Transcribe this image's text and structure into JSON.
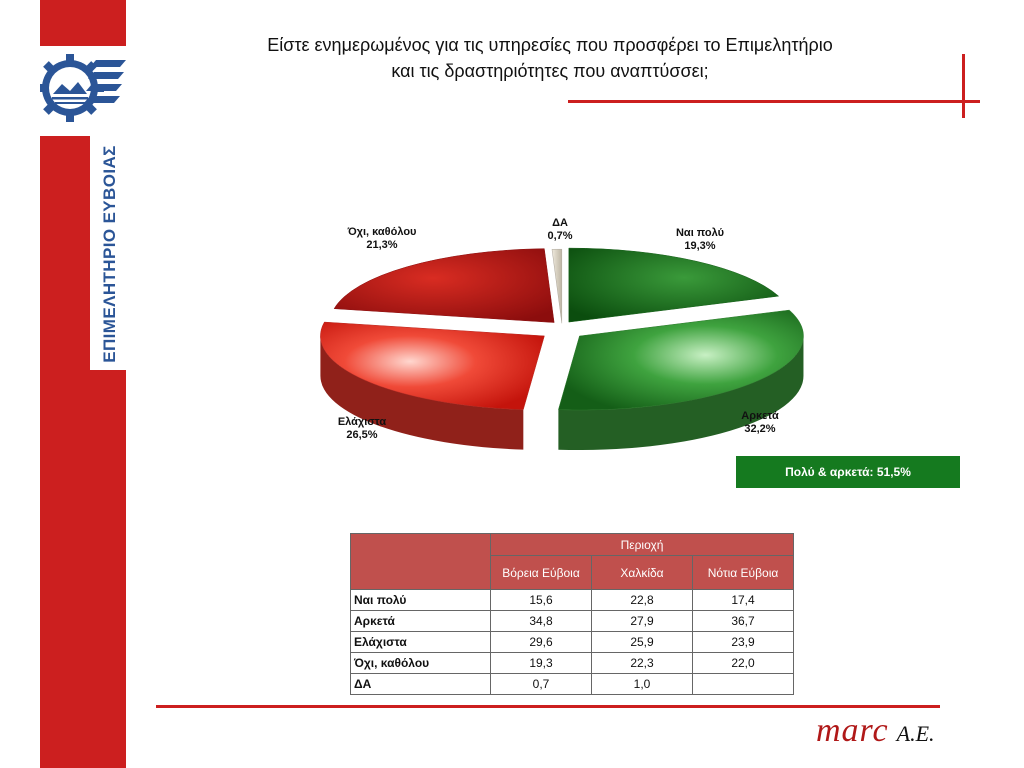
{
  "title": {
    "line1": "Είστε ενημερωμένος για τις υπηρεσίες που προσφέρει το Επιμελητήριο",
    "line2": "και τις δραστηριότητες που αναπτύσσει;"
  },
  "sidebar": {
    "org_name": "ΕΠΙΜΕΛΗΤΗΡΙΟ ΕΥΒΟΙΑΣ"
  },
  "chart_data": {
    "type": "pie",
    "slices": [
      {
        "label": "Ναι πολύ",
        "value": 19.3,
        "display": "19,3%",
        "color": "#1e7a22"
      },
      {
        "label": "Αρκετά",
        "value": 32.2,
        "display": "32,2%",
        "color": "#3a9a3a"
      },
      {
        "label": "Ελάχιστα",
        "value": 26.5,
        "display": "26,5%",
        "color": "#e8352a"
      },
      {
        "label": "Όχι, καθόλου",
        "value": 21.3,
        "display": "21,3%",
        "color": "#b01414"
      },
      {
        "label": "ΔΑ",
        "value": 0.7,
        "display": "0,7%",
        "color": "#d9d2c4"
      }
    ]
  },
  "summary": {
    "text": "Πολύ & αρκετά: 51,5%",
    "color": "#157a1f"
  },
  "table": {
    "group_header": "Περιοχή",
    "columns": [
      "Βόρεια Εύβοια",
      "Χαλκίδα",
      "Νότια Εύβοια"
    ],
    "rows": [
      {
        "label": "Ναι πολύ",
        "values": [
          "15,6",
          "22,8",
          "17,4"
        ]
      },
      {
        "label": "Αρκετά",
        "values": [
          "34,8",
          "27,9",
          "36,7"
        ]
      },
      {
        "label": "Ελάχιστα",
        "values": [
          "29,6",
          "25,9",
          "23,9"
        ]
      },
      {
        "label": "Όχι, καθόλου",
        "values": [
          "19,3",
          "22,3",
          "22,0"
        ]
      },
      {
        "label": "ΔΑ",
        "values": [
          "0,7",
          "1,0",
          ""
        ]
      }
    ]
  },
  "footer": {
    "brand": "marc",
    "suffix": "A.E."
  },
  "colors": {
    "accent": "#cc1f1f",
    "logo_blue": "#2b5597"
  }
}
